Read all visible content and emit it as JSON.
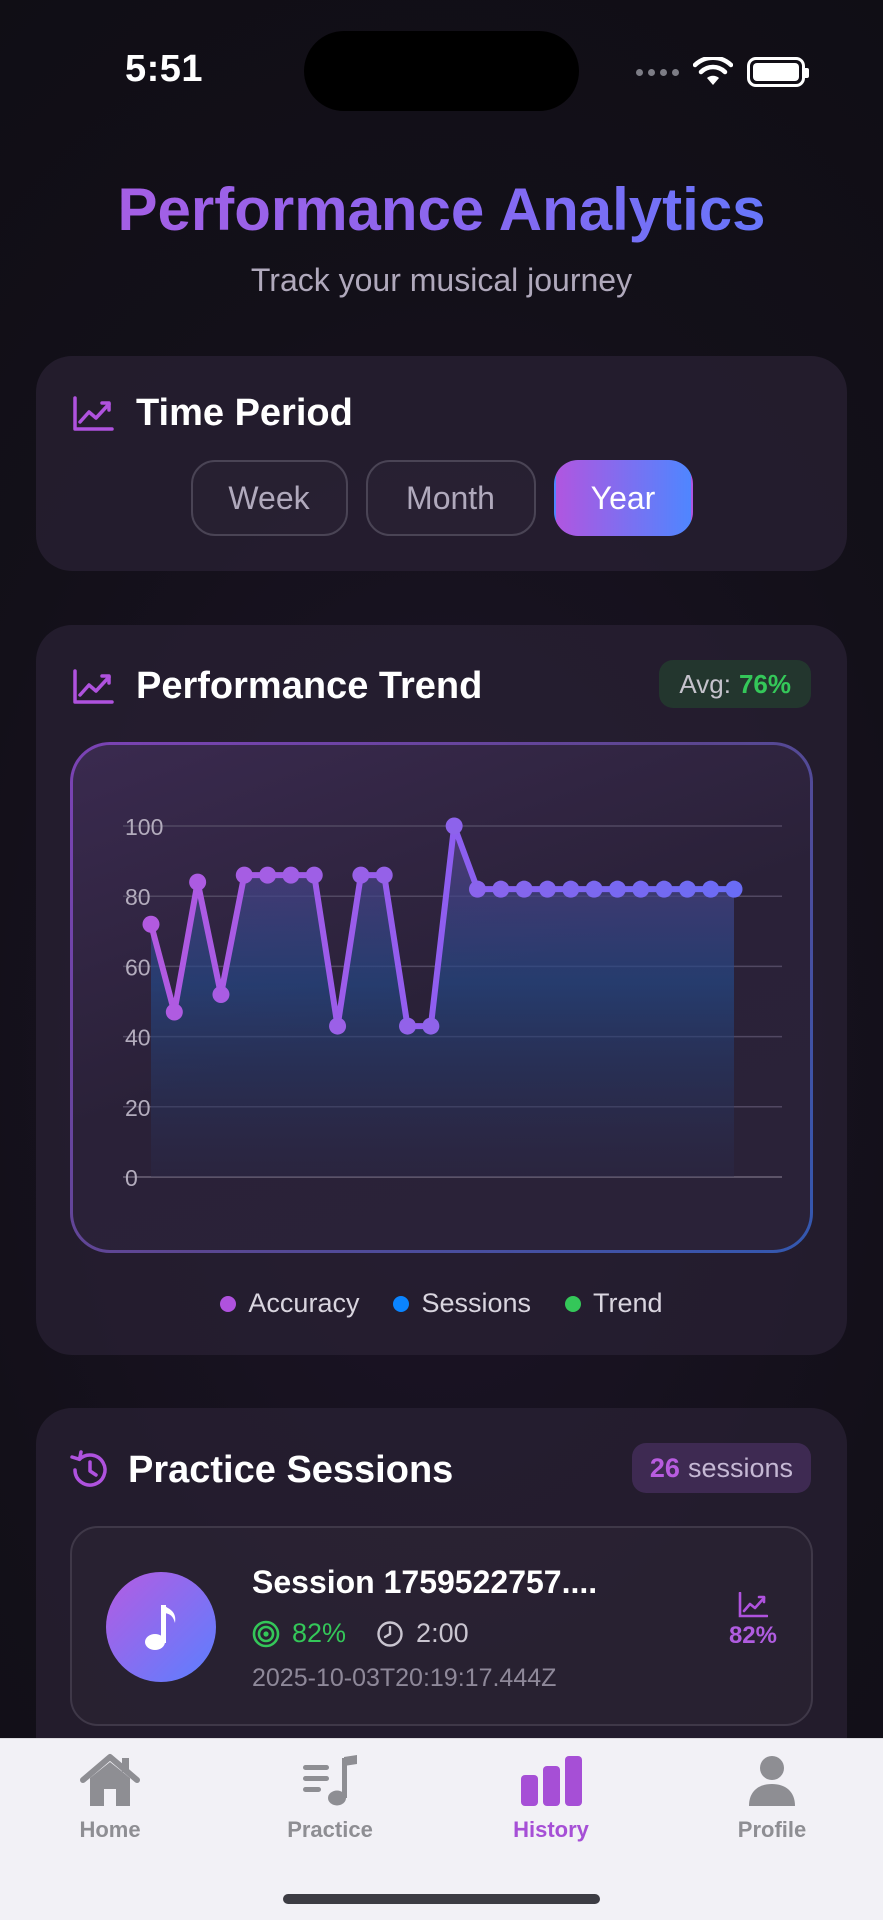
{
  "status_bar": {
    "time": "5:51"
  },
  "header": {
    "title": "Performance Analytics",
    "subtitle": "Track your musical journey"
  },
  "time_period": {
    "label": "Time Period",
    "options": [
      "Week",
      "Month",
      "Year"
    ],
    "selected": "Year"
  },
  "trend": {
    "label": "Performance Trend",
    "avg_label": "Avg:",
    "avg_value": "76%"
  },
  "chart_data": {
    "type": "area",
    "x": [
      1,
      2,
      3,
      4,
      5,
      6,
      7,
      8,
      9,
      10,
      11,
      12,
      13,
      14,
      15,
      16,
      17,
      18,
      19,
      20,
      21,
      22,
      23,
      24,
      25,
      26
    ],
    "series": [
      {
        "name": "Accuracy",
        "values": [
          72,
          47,
          84,
          52,
          86,
          86,
          86,
          86,
          43,
          86,
          86,
          43,
          43,
          100,
          82,
          82,
          82,
          82,
          82,
          82,
          82,
          82,
          82,
          82,
          82,
          82
        ]
      }
    ],
    "ylim": [
      0,
      100
    ],
    "yticks": [
      "0",
      "20",
      "40",
      "60",
      "80",
      "100"
    ],
    "grid": true,
    "legend": [
      {
        "name": "Accuracy",
        "color": "#af52de"
      },
      {
        "name": "Sessions",
        "color": "#0a84ff"
      },
      {
        "name": "Trend",
        "color": "#34c759"
      }
    ]
  },
  "sessions": {
    "label": "Practice Sessions",
    "count": "26",
    "count_suffix": "sessions",
    "items": [
      {
        "title": "Session 1759522757....",
        "accuracy": "82%",
        "duration": "2:00",
        "date": "2025-10-03T20:19:17.444Z",
        "score": "82%"
      }
    ]
  },
  "tabbar": {
    "items": [
      {
        "label": "Home",
        "icon": "house-icon"
      },
      {
        "label": "Practice",
        "icon": "music-list-icon"
      },
      {
        "label": "History",
        "icon": "bar-chart-icon"
      },
      {
        "label": "Profile",
        "icon": "person-icon"
      }
    ],
    "active": "History"
  },
  "colors": {
    "accent_purple": "#af52de",
    "accent_blue": "#5b7fff",
    "success_green": "#34c759"
  }
}
